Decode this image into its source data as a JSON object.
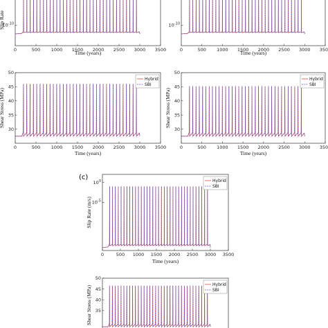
{
  "panel_letter": "(c)",
  "colors": {
    "hybrid": "#e4473a",
    "sbi": "#5151c8",
    "axis": "#333333"
  },
  "chart_data": [
    {
      "type": "line",
      "xlabel": "Time (years)",
      "ylabel": "Slip Rate",
      "xlim": [
        0,
        3500
      ],
      "xticks": [
        "0",
        "500",
        "1000",
        "1500",
        "2000",
        "2500",
        "3000",
        "3500"
      ],
      "ylim": [
        -18,
        2
      ],
      "yscale": "log",
      "yticks": [
        {
          "value": -10,
          "label": "10^{-10}"
        }
      ],
      "legend": null,
      "series": [
        {
          "name": "Hybrid",
          "events_start": 200,
          "events_end": 2990,
          "event_interval": 80,
          "baseline": -13.4,
          "peak": 1.2
        },
        {
          "name": "SBI",
          "events_start": 200,
          "events_end": 2990,
          "event_interval": 80,
          "baseline": -13.4,
          "peak": 1.2
        }
      ]
    },
    {
      "type": "line",
      "xlabel": "Time (years)",
      "ylabel": "",
      "xlim": [
        0,
        3500
      ],
      "xticks": [
        "0",
        "500",
        "1000",
        "1500",
        "2000",
        "2500",
        "3000",
        "3500"
      ],
      "ylim": [
        -18,
        2
      ],
      "yscale": "log",
      "yticks": [
        {
          "value": -10,
          "label": "10^{-10}"
        }
      ],
      "legend": null,
      "series": [
        {
          "name": "Hybrid",
          "events_start": 200,
          "events_end": 2990,
          "event_interval": 80,
          "baseline": -13.4,
          "peak": 1.2
        },
        {
          "name": "SBI",
          "events_start": 200,
          "events_end": 2990,
          "event_interval": 80,
          "baseline": -13.4,
          "peak": 1.2
        }
      ]
    },
    {
      "type": "line",
      "xlabel": "Time (years)",
      "ylabel": "Shear Stress (MPa)",
      "xlim": [
        0,
        3500
      ],
      "xticks": [
        "0",
        "500",
        "1000",
        "1500",
        "2000",
        "2500",
        "3000",
        "3500"
      ],
      "ylim": [
        25,
        50
      ],
      "yticks": [
        {
          "value": 30,
          "label": "30"
        },
        {
          "value": 35,
          "label": "35"
        },
        {
          "value": 40,
          "label": "40"
        },
        {
          "value": 45,
          "label": "45"
        },
        {
          "value": 50,
          "label": "50"
        }
      ],
      "legend": "top-right",
      "series": [
        {
          "name": "Hybrid",
          "events_start": 200,
          "events_end": 2990,
          "event_interval": 80,
          "baseline": 27.5,
          "pre_event": 29.0,
          "peak": 46.0
        },
        {
          "name": "SBI",
          "events_start": 200,
          "events_end": 2990,
          "event_interval": 80,
          "baseline": 27.5,
          "pre_event": 29.0,
          "peak": 46.0
        }
      ]
    },
    {
      "type": "line",
      "xlabel": "Time (years)",
      "ylabel": "Shear Stress (MPa)",
      "xlim": [
        0,
        3500
      ],
      "xticks": [
        "0",
        "500",
        "1000",
        "1500",
        "2000",
        "2500",
        "3000",
        "3500"
      ],
      "ylim": [
        25,
        50
      ],
      "yticks": [
        {
          "value": 30,
          "label": "30"
        },
        {
          "value": 35,
          "label": "35"
        },
        {
          "value": 40,
          "label": "40"
        },
        {
          "value": 45,
          "label": "45"
        },
        {
          "value": 50,
          "label": "50"
        }
      ],
      "legend": "top-right",
      "series": [
        {
          "name": "Hybrid",
          "events_start": 200,
          "events_end": 2990,
          "event_interval": 80,
          "baseline": 27.5,
          "pre_event": 29.0,
          "peak": 45.2
        },
        {
          "name": "SBI",
          "events_start": 200,
          "events_end": 2990,
          "event_interval": 80,
          "baseline": 27.5,
          "pre_event": 29.0,
          "peak": 45.2
        }
      ]
    },
    {
      "type": "line",
      "xlabel": "Time (years)",
      "ylabel": "Slip Rate (m/s)",
      "xlim": [
        0,
        3500
      ],
      "xticks": [
        "0",
        "500",
        "1000",
        "1500",
        "2000",
        "2500",
        "3000",
        "3500"
      ],
      "ylim": [
        -17,
        2
      ],
      "yscale": "log",
      "yticks": [
        {
          "value": 0,
          "label": "10^{0}"
        },
        {
          "value": -5,
          "label": "10^{-5}"
        }
      ],
      "legend": "top-right",
      "series": [
        {
          "name": "Hybrid",
          "events_start": 200,
          "events_end": 2990,
          "event_interval": 80,
          "baseline": -16.3,
          "peak": -1.0
        },
        {
          "name": "SBI",
          "events_start": 200,
          "events_end": 2990,
          "event_interval": 80,
          "baseline": -16.3,
          "peak": -1.0
        }
      ]
    },
    {
      "type": "line",
      "xlabel": "",
      "ylabel": "Shear Stress (MPa)",
      "xlim": [
        0,
        3500
      ],
      "xticks": [],
      "ylim": [
        25,
        50
      ],
      "yticks": [
        {
          "value": 35,
          "label": "35"
        },
        {
          "value": 40,
          "label": "40"
        },
        {
          "value": 45,
          "label": "45"
        },
        {
          "value": 50,
          "label": "50"
        }
      ],
      "legend": "top-right",
      "series": [
        {
          "name": "Hybrid",
          "events_start": 200,
          "events_end": 2990,
          "event_interval": 80,
          "baseline": 27.5,
          "pre_event": 29.0,
          "peak": 46.5
        },
        {
          "name": "SBI",
          "events_start": 200,
          "events_end": 2990,
          "event_interval": 80,
          "baseline": 27.5,
          "pre_event": 29.0,
          "peak": 46.5
        }
      ]
    }
  ]
}
